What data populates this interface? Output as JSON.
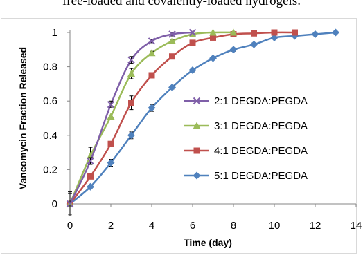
{
  "caption": "free-loaded and covalently-loaded hydrogels.",
  "chart_data": {
    "type": "line",
    "title": "",
    "xlabel": "Time (day)",
    "ylabel": "Vancomycin Fraction Released",
    "xlim": [
      0,
      14
    ],
    "ylim": [
      0,
      1
    ],
    "xticks": [
      0,
      2,
      4,
      6,
      8,
      10,
      12,
      14
    ],
    "yticks": [
      0,
      0.2,
      0.4,
      0.6,
      0.8,
      1
    ],
    "ytick_labels": [
      "0",
      "0.2",
      "0.4",
      "0.6",
      "0.8",
      "1"
    ],
    "grid": false,
    "legend_position": "right",
    "series": [
      {
        "name": "2:1 DEGDA:PEGDA",
        "color": "#7f5fa8",
        "marker": "x",
        "x": [
          0,
          1,
          2,
          3,
          4,
          5,
          6
        ],
        "y": [
          0,
          0.25,
          0.58,
          0.84,
          0.95,
          0.99,
          1.0
        ],
        "err": [
          0.06,
          0.02,
          0.02,
          0.02,
          0.01,
          0.01,
          0.0
        ]
      },
      {
        "name": "3:1 DEGDA:PEGDA",
        "color": "#9bbb59",
        "marker": "triangle",
        "x": [
          0,
          1,
          2,
          3,
          4,
          5,
          6,
          7,
          8
        ],
        "y": [
          0,
          0.28,
          0.51,
          0.76,
          0.88,
          0.95,
          0.99,
          1.0,
          1.0
        ],
        "err": [
          0.07,
          0.05,
          0.02,
          0.03,
          0.01,
          0.01,
          0.0,
          0.0,
          0.0
        ]
      },
      {
        "name": "4:1 DEGDA:PEGDA",
        "color": "#c0504d",
        "marker": "square",
        "x": [
          0,
          1,
          2,
          3,
          4,
          5,
          6,
          7,
          8,
          9,
          10,
          11
        ],
        "y": [
          0,
          0.16,
          0.35,
          0.59,
          0.75,
          0.86,
          0.94,
          0.97,
          0.99,
          0.995,
          1.0,
          1.0
        ],
        "err": [
          0.0,
          0.01,
          0.01,
          0.04,
          0.01,
          0.01,
          0.01,
          0.0,
          0.0,
          0.0,
          0.0,
          0.0
        ]
      },
      {
        "name": "5:1 DEGDA:PEGDA",
        "color": "#4f81bd",
        "marker": "diamond",
        "x": [
          0,
          1,
          2,
          3,
          4,
          5,
          6,
          7,
          8,
          9,
          10,
          11,
          12,
          13
        ],
        "y": [
          0,
          0.1,
          0.24,
          0.4,
          0.56,
          0.68,
          0.78,
          0.85,
          0.9,
          0.93,
          0.97,
          0.98,
          0.99,
          1.0
        ],
        "err": [
          0.0,
          0.01,
          0.02,
          0.02,
          0.02,
          0.01,
          0.01,
          0.01,
          0.01,
          0.01,
          0.0,
          0.0,
          0.0,
          0.0
        ]
      }
    ]
  }
}
